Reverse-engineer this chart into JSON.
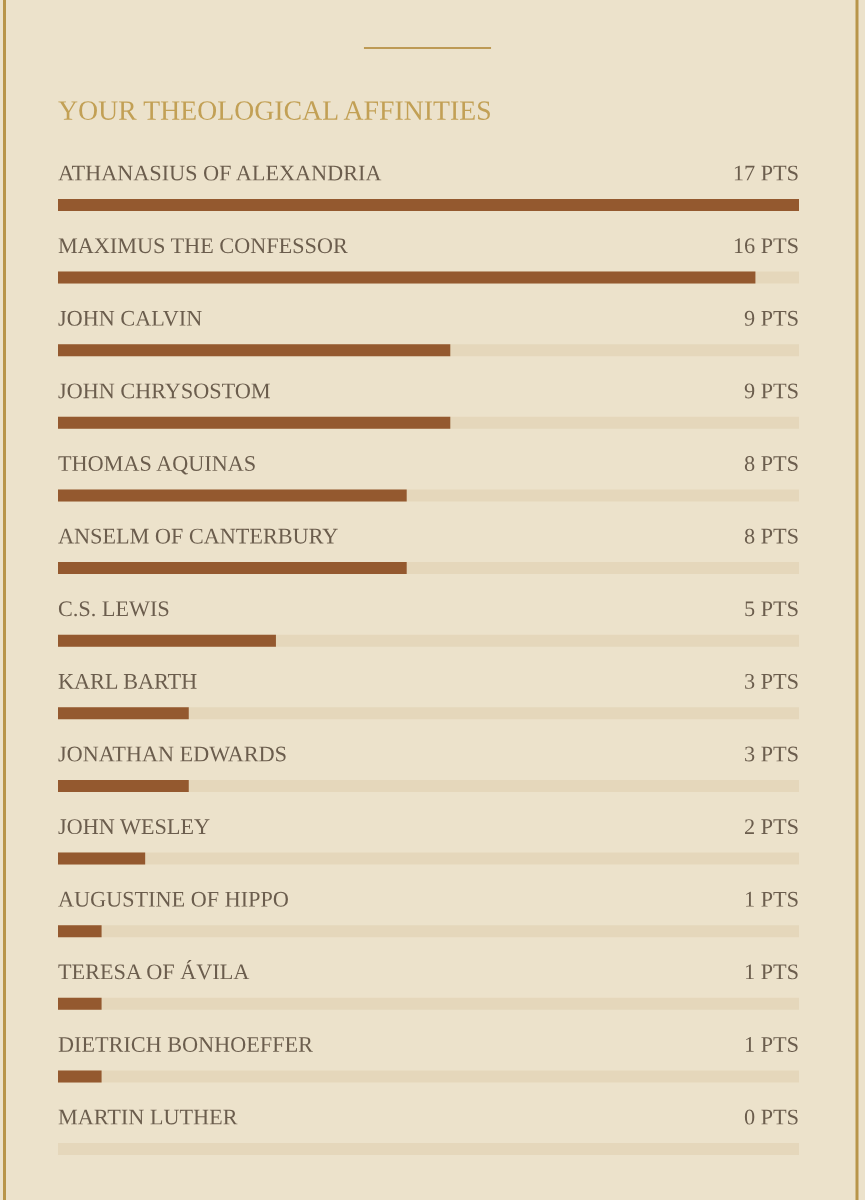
{
  "chart_data": {
    "type": "bar",
    "orientation": "horizontal",
    "title": "YOUR THEOLOGICAL AFFINITIES",
    "categories": [
      "ATHANASIUS OF ALEXANDRIA",
      "MAXIMUS THE CONFESSOR",
      "JOHN CALVIN",
      "JOHN CHRYSOSTOM",
      "THOMAS AQUINAS",
      "ANSELM OF CANTERBURY",
      "C.S. LEWIS",
      "KARL BARTH",
      "JONATHAN EDWARDS",
      "JOHN WESLEY",
      "AUGUSTINE OF HIPPO",
      "TERESA OF ÁVILA",
      "DIETRICH BONHOEFFER",
      "MARTIN LUTHER"
    ],
    "values": [
      17,
      16,
      9,
      9,
      8,
      8,
      5,
      3,
      3,
      2,
      1,
      1,
      1,
      0
    ],
    "value_labels": [
      "17 PTS",
      "16 PTS",
      "9 PTS",
      "9 PTS",
      "8 PTS",
      "8 PTS",
      "5 PTS",
      "3 PTS",
      "3 PTS",
      "2 PTS",
      "1 PTS",
      "1 PTS",
      "1 PTS",
      "0 PTS"
    ],
    "color": "#94592f",
    "xlim": [
      0,
      17
    ],
    "grid": "y",
    "tick_labels": "y"
  }
}
